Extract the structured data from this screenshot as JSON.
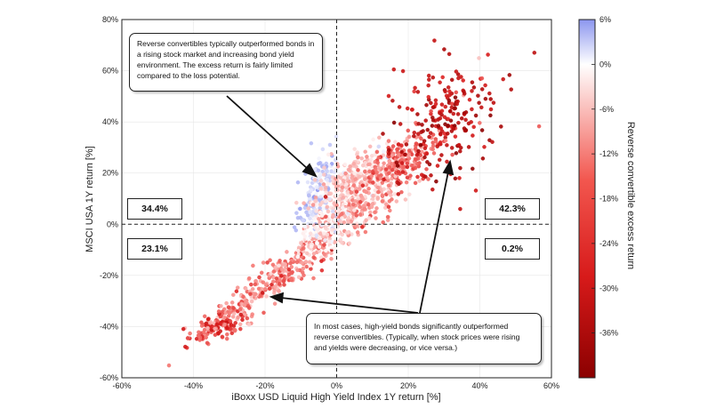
{
  "chart_data": {
    "type": "scatter",
    "xlabel": "iBoxx USD Liquid High Yield Index 1Y return [%]",
    "ylabel": "MSCI USA 1Y return [%]",
    "xlim": [
      -60,
      60
    ],
    "ylim": [
      -60,
      80
    ],
    "x_ticks": [
      "-60%",
      "-40%",
      "-20%",
      "0%",
      "20%",
      "40%",
      "60%"
    ],
    "y_ticks": [
      "-60%",
      "-40%",
      "-20%",
      "0%",
      "20%",
      "40%",
      "60%",
      "80%"
    ],
    "grid": true,
    "reference_lines": {
      "x": 0,
      "y": 0,
      "style": "dashed"
    },
    "colorbar": {
      "label": "Reverse convertible excess return",
      "range": [
        -42,
        6
      ],
      "ticks": [
        "6%",
        "0%",
        "-6%",
        "-12%",
        "-18%",
        "-24%",
        "-30%",
        "-36%"
      ],
      "colors": {
        "high": "#8c96ef",
        "zero": "#ffffff",
        "low": "#8b0000"
      }
    },
    "quadrant_shares": {
      "top_left": "34.4%",
      "top_right": "42.3%",
      "bottom_left": "23.1%",
      "bottom_right": "0.2%"
    },
    "annotations": [
      {
        "text": "Reverse convertibles typically outperformed bonds in a rising stock market and increasing bond yield environment. The excess return is fairly limited compared to the loss potential.",
        "points_to": [
          -6,
          19
        ]
      },
      {
        "text": "In most cases, high-yield bonds significantly outperformed reverse convertibles. (Typically, when stock prices were rising and yields were decreasing, or vice versa.)",
        "points_to": [
          [
            -18,
            -28
          ],
          [
            32,
            24
          ]
        ]
      }
    ],
    "clusters": [
      {
        "name": "blue_top_left",
        "cx": -5,
        "cy": 14,
        "sx": 2.4,
        "sy": 8,
        "rho": 0.55,
        "n": 150,
        "ex_mean": 2.5,
        "ex_sd": 1.6
      },
      {
        "name": "pink_top_band",
        "cx": 5,
        "cy": 16,
        "sx": 6,
        "sy": 8,
        "rho": 0.65,
        "n": 340,
        "ex_mean": -4,
        "ex_sd": 2.5
      },
      {
        "name": "mid_band",
        "cx": 6,
        "cy": 6,
        "sx": 7,
        "sy": 8,
        "rho": 0.7,
        "n": 220,
        "ex_mean": -7,
        "ex_sd": 3
      },
      {
        "name": "upper_band_red",
        "cx": 17,
        "cy": 24,
        "sx": 5,
        "sy": 6,
        "rho": 0.5,
        "n": 180,
        "ex_mean": -11,
        "ex_sd": 3
      },
      {
        "name": "dark_red_cloud",
        "cx": 30,
        "cy": 38,
        "sx": 8,
        "sy": 12,
        "rho": 0.35,
        "n": 230,
        "ex_mean": -26,
        "ex_sd": 7
      },
      {
        "name": "negative_band",
        "cx": -18,
        "cy": -22,
        "sx": 9,
        "sy": 10,
        "rho": 0.9,
        "n": 280,
        "ex_mean": -10,
        "ex_sd": 4
      },
      {
        "name": "near_origin_light",
        "cx": -4,
        "cy": -3,
        "sx": 4,
        "sy": 5,
        "rho": 0.6,
        "n": 90,
        "ex_mean": -1,
        "ex_sd": 2
      },
      {
        "name": "lower_left_red",
        "cx": -33,
        "cy": -40,
        "sx": 4,
        "sy": 3.5,
        "rho": 0.6,
        "n": 130,
        "ex_mean": -14,
        "ex_sd": 4
      }
    ]
  }
}
